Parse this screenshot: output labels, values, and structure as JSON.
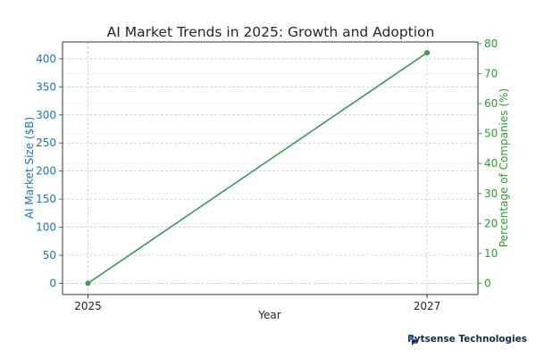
{
  "chart_data": {
    "type": "line",
    "title": "AI Market Trends in 2025: Growth and Adoption",
    "xlabel": "Year",
    "ylabel_left": "AI Market Size ($B)",
    "ylabel_right": "Percentage of Companies (%)",
    "x": [
      2025,
      2027
    ],
    "x_ticks": [
      "2025",
      "2027"
    ],
    "ylim_left": [
      0,
      420
    ],
    "yticks_left": [
      0,
      50,
      100,
      150,
      200,
      250,
      300,
      350,
      400
    ],
    "ylim_right": [
      0,
      80
    ],
    "yticks_right": [
      0,
      10,
      20,
      30,
      40,
      50,
      60,
      70,
      80
    ],
    "series": [
      {
        "axis": "right",
        "values": [
          0,
          77
        ],
        "color": "#3a9a5b"
      }
    ],
    "grid": true,
    "colors": {
      "left_axis": "#1f77b4",
      "right_axis": "#2ca02c"
    }
  },
  "brand": {
    "name": "Rytsense Technologies",
    "icon": "rytsense-logo-icon"
  }
}
